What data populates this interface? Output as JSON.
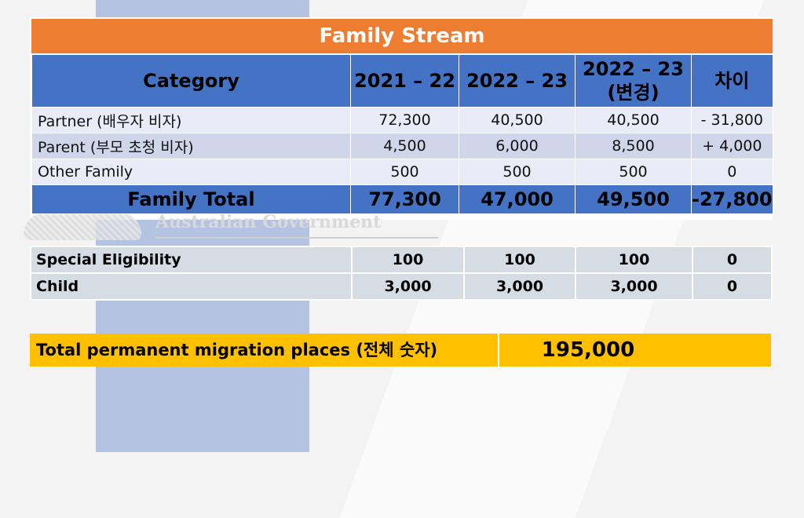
{
  "title": "Family Stream",
  "headers": [
    "Category",
    "2021 – 22",
    "2022 – 23",
    "2022 – 23\n(변경)",
    "차이"
  ],
  "rows": [
    {
      "category": "Partner (배우자 비자)",
      "y2122": "72,300",
      "y2223": "40,500",
      "y2223c": "40,500",
      "diff": "- 31,800"
    },
    {
      "category": "Parent (부모 초청 비자)",
      "y2122": "4,500",
      "y2223": "6,000",
      "y2223c": "8,500",
      "diff": "+ 4,000"
    },
    {
      "category": "Other Family",
      "y2122": "500",
      "y2223": "500",
      "y2223c": "500",
      "diff": "0"
    }
  ],
  "total": {
    "category": "Family Total",
    "y2122": "77,300",
    "y2223": "47,000",
    "y2223c": "49,500",
    "diff": "-27,800"
  },
  "watermark": "Australian Government",
  "extra_rows": [
    {
      "category": "Special Eligibility",
      "y2122": "100",
      "y2223": "100",
      "y2223c": "100",
      "diff": "0"
    },
    {
      "category": "Child",
      "y2122": "3,000",
      "y2223": "3,000",
      "y2223c": "3,000",
      "diff": "0"
    }
  ],
  "grand_total": {
    "label": "Total permanent migration places (전체 숫자)",
    "value": "195,000"
  },
  "colors": {
    "title": "#ed7d31",
    "header": "#4472c4",
    "grand": "#ffc000",
    "negative": "#e11111",
    "positive": "#1a9a3a"
  }
}
